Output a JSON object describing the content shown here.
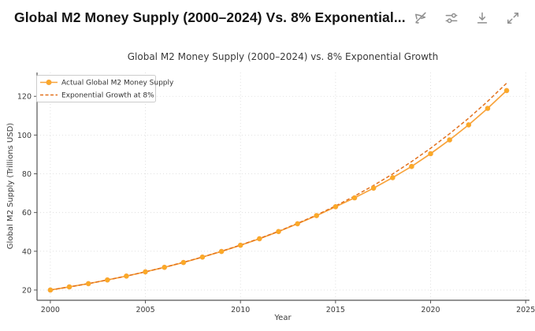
{
  "header": {
    "title": "Global M2 Money Supply (2000–2024) Vs. 8% Exponential...",
    "icons": [
      "pointer-off-icon",
      "sliders-icon",
      "download-icon",
      "expand-icon"
    ]
  },
  "colors": {
    "accent_actual": "#F8A33B",
    "accent_actual_marker": "#FBAA26",
    "accent_expo": "#E2711D",
    "icon_gray": "#8f8f8f",
    "grid_gray": "#d9d9d9",
    "spine_gray": "#555555"
  },
  "chart_data": {
    "type": "line",
    "title": "Global M2 Money Supply (2000–2024) vs. 8% Exponential Growth",
    "xlabel": "Year",
    "ylabel": "Global M2 Supply (Trillions USD)",
    "x": [
      2000,
      2001,
      2002,
      2003,
      2004,
      2005,
      2006,
      2007,
      2008,
      2009,
      2010,
      2011,
      2012,
      2013,
      2014,
      2015,
      2016,
      2017,
      2018,
      2019,
      2020,
      2021,
      2022,
      2023,
      2024
    ],
    "series": [
      {
        "name": "Actual Global M2 Money Supply",
        "style": "solid",
        "marker": "circle",
        "color": "#F8A33B",
        "marker_color": "#FBAA26",
        "values": [
          20.0,
          21.6,
          23.3,
          25.2,
          27.2,
          29.4,
          31.7,
          34.2,
          37.0,
          39.9,
          43.1,
          46.5,
          50.2,
          54.2,
          58.4,
          63.0,
          67.6,
          72.6,
          78.0,
          83.8,
          90.4,
          97.5,
          105.3,
          113.8,
          123.0
        ]
      },
      {
        "name": "Exponential Growth at 8%",
        "style": "dashed",
        "marker": "none",
        "color": "#E2711D",
        "values": [
          20.0,
          21.6,
          23.3,
          25.2,
          27.2,
          29.4,
          31.7,
          34.3,
          37.0,
          40.0,
          43.2,
          46.6,
          50.3,
          54.4,
          58.7,
          63.4,
          68.5,
          74.0,
          79.9,
          86.3,
          93.2,
          100.7,
          108.7,
          117.4,
          126.8
        ]
      }
    ],
    "xticks": [
      2000,
      2005,
      2010,
      2015,
      2020,
      2025
    ],
    "yticks": [
      20,
      40,
      60,
      80,
      100,
      120
    ],
    "xlim": [
      1999.3,
      2025.2
    ],
    "ylim": [
      14.7,
      132.3
    ],
    "grid": true,
    "legend_position": "upper-left"
  }
}
